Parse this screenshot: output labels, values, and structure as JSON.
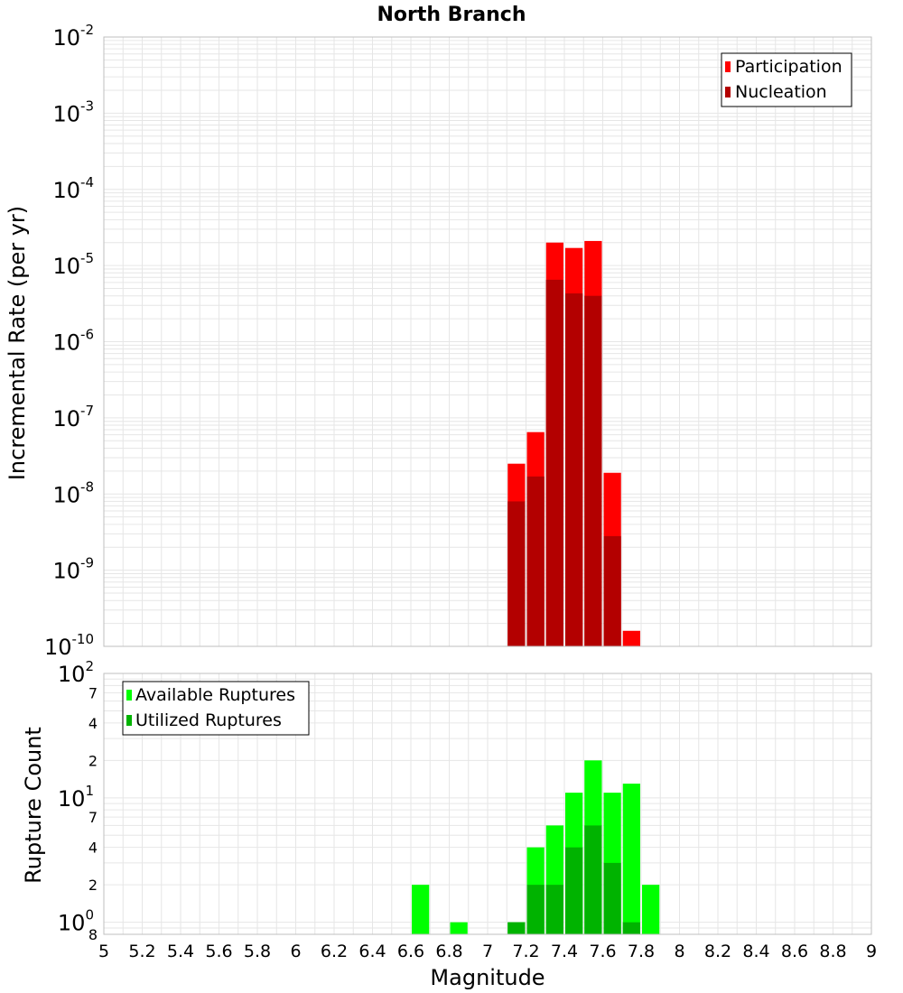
{
  "title": "North Branch",
  "xlabel": "Magnitude",
  "x_tick_labels": [
    "5",
    "5.2",
    "5.4",
    "5.6",
    "5.8",
    "6",
    "6.2",
    "6.4",
    "6.6",
    "6.8",
    "7",
    "7.2",
    "7.4",
    "7.6",
    "7.8",
    "8",
    "8.2",
    "8.4",
    "8.6",
    "8.8",
    "9"
  ],
  "colors": {
    "participation": "#ff0000",
    "nucleation": "#b30000",
    "available": "#00ff00",
    "utilized": "#00b300",
    "grid": "#e6e6e6",
    "frame": "#bfbfbf"
  },
  "chart_data": [
    {
      "type": "bar",
      "ylabel": "Incremental Rate (per yr)",
      "yscale": "log",
      "ylim": [
        1e-10,
        0.01
      ],
      "xlim": [
        5,
        9
      ],
      "bin_width": 0.1,
      "y_tick_labels": [
        {
          "base": "10",
          "exp": "-10"
        },
        {
          "base": "10",
          "exp": "-9"
        },
        {
          "base": "10",
          "exp": "-8"
        },
        {
          "base": "10",
          "exp": "-7"
        },
        {
          "base": "10",
          "exp": "-6"
        },
        {
          "base": "10",
          "exp": "-5"
        },
        {
          "base": "10",
          "exp": "-4"
        },
        {
          "base": "10",
          "exp": "-3"
        },
        {
          "base": "10",
          "exp": "-2"
        }
      ],
      "legend_position": "top-right",
      "series": [
        {
          "name": "Participation",
          "x": [
            7.15,
            7.25,
            7.35,
            7.45,
            7.55,
            7.65,
            7.75
          ],
          "values": [
            2.5e-08,
            6.5e-08,
            2e-05,
            1.7e-05,
            2.1e-05,
            1.9e-08,
            1.6e-10
          ]
        },
        {
          "name": "Nucleation",
          "x": [
            7.15,
            7.25,
            7.35,
            7.45,
            7.55,
            7.65
          ],
          "values": [
            8e-09,
            1.7e-08,
            6.5e-06,
            4.3e-06,
            4e-06,
            2.8e-09
          ]
        }
      ]
    },
    {
      "type": "bar",
      "ylabel": "Rupture Count",
      "yscale": "log",
      "ylim": [
        0.8,
        100
      ],
      "xlim": [
        5,
        9
      ],
      "bin_width": 0.1,
      "y_tick_labels": [
        {
          "value": 1,
          "base": "10",
          "exp": "0"
        },
        {
          "value": 2,
          "label": "2"
        },
        {
          "value": 4,
          "label": "4"
        },
        {
          "value": 7,
          "label": "7"
        },
        {
          "value": 10,
          "base": "10",
          "exp": "1"
        },
        {
          "value": 20,
          "label": "2"
        },
        {
          "value": 40,
          "label": "4"
        },
        {
          "value": 70,
          "label": "7"
        },
        {
          "value": 100,
          "base": "10",
          "exp": "2"
        },
        {
          "value": 0.8,
          "label": "8"
        }
      ],
      "legend_position": "top-left",
      "series": [
        {
          "name": "Available Ruptures",
          "x": [
            6.65,
            6.85,
            7.15,
            7.25,
            7.35,
            7.45,
            7.55,
            7.65,
            7.75,
            7.85
          ],
          "values": [
            2,
            1,
            1,
            4,
            6,
            11,
            20,
            11,
            13,
            2
          ]
        },
        {
          "name": "Utilized Ruptures",
          "x": [
            7.15,
            7.25,
            7.35,
            7.45,
            7.55,
            7.65,
            7.75
          ],
          "values": [
            1,
            2,
            2,
            4,
            6,
            3,
            1
          ]
        }
      ]
    }
  ]
}
